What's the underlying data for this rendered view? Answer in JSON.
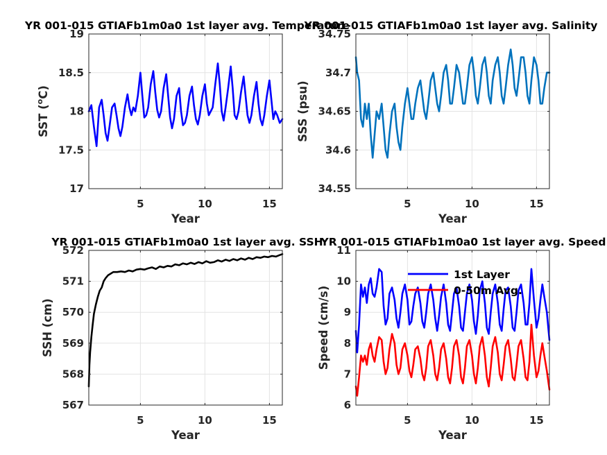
{
  "chart_data": [
    {
      "type": "line",
      "title": "YR 001-015 GTIAFb1m0a0 1st layer avg. Temperature",
      "xlabel": "Year",
      "ylabel": "SST (°C)",
      "ylabel_parts": [
        "SST (",
        "o",
        "C)"
      ],
      "xlim": [
        1,
        16
      ],
      "ylim": [
        17,
        19
      ],
      "xticks": [
        5,
        10,
        15
      ],
      "xticklabels": [
        "5",
        "10",
        "15"
      ],
      "yticks": [
        17,
        17.5,
        18,
        18.5,
        19
      ],
      "yticklabels": [
        "17",
        "17.5",
        "18",
        "18.5",
        "19"
      ],
      "grid": true,
      "series": [
        {
          "color": "#0000ff",
          "x": [
            1.0,
            1.2,
            1.4,
            1.6,
            1.8,
            2.0,
            2.15,
            2.3,
            2.45,
            2.6,
            2.8,
            3.0,
            3.15,
            3.3,
            3.45,
            3.6,
            3.8,
            4.0,
            4.15,
            4.3,
            4.45,
            4.6,
            4.8,
            5.0,
            5.15,
            5.3,
            5.45,
            5.6,
            5.8,
            6.0,
            6.15,
            6.3,
            6.45,
            6.6,
            6.8,
            7.0,
            7.15,
            7.3,
            7.45,
            7.6,
            7.8,
            8.0,
            8.15,
            8.3,
            8.45,
            8.6,
            8.8,
            9.0,
            9.15,
            9.3,
            9.45,
            9.6,
            9.8,
            10.0,
            10.15,
            10.3,
            10.45,
            10.6,
            10.8,
            11.0,
            11.15,
            11.3,
            11.45,
            11.6,
            11.8,
            12.0,
            12.15,
            12.3,
            12.45,
            12.6,
            12.8,
            13.0,
            13.15,
            13.3,
            13.45,
            13.6,
            13.8,
            14.0,
            14.15,
            14.3,
            14.45,
            14.6,
            14.8,
            15.0,
            15.15,
            15.3,
            15.45,
            15.6,
            15.8,
            16.0
          ],
          "y": [
            18.0,
            18.08,
            17.8,
            17.55,
            18.05,
            18.15,
            17.95,
            17.72,
            17.62,
            17.8,
            18.05,
            18.1,
            17.95,
            17.78,
            17.68,
            17.8,
            18.05,
            18.22,
            18.05,
            17.95,
            18.05,
            18.0,
            18.2,
            18.5,
            18.2,
            17.92,
            17.95,
            18.05,
            18.35,
            18.52,
            18.25,
            18.02,
            17.92,
            18.0,
            18.3,
            18.48,
            18.2,
            17.92,
            17.78,
            17.9,
            18.2,
            18.3,
            18.0,
            17.82,
            17.85,
            17.95,
            18.2,
            18.32,
            18.08,
            17.9,
            17.83,
            17.95,
            18.2,
            18.35,
            18.1,
            17.95,
            18.0,
            18.05,
            18.35,
            18.62,
            18.35,
            18.0,
            17.88,
            18.05,
            18.3,
            18.58,
            18.3,
            17.95,
            17.9,
            18.0,
            18.25,
            18.45,
            18.2,
            17.95,
            17.85,
            17.95,
            18.2,
            18.38,
            18.1,
            17.9,
            17.82,
            17.95,
            18.2,
            18.4,
            18.15,
            17.9,
            18.0,
            17.95,
            17.85,
            17.9
          ]
        }
      ]
    },
    {
      "type": "line",
      "title": "YR 001-015 GTIAFb1m0a0 1st layer avg. Salinity",
      "xlabel": "Year",
      "ylabel": "SSS (psu)",
      "xlim": [
        1,
        16
      ],
      "ylim": [
        34.55,
        34.75
      ],
      "xticks": [
        5,
        10,
        15
      ],
      "xticklabels": [
        "5",
        "10",
        "15"
      ],
      "yticks": [
        34.55,
        34.6,
        34.65,
        34.7,
        34.75
      ],
      "yticklabels": [
        "34.55",
        "34.6",
        "34.65",
        "34.7",
        "34.75"
      ],
      "grid": true,
      "series": [
        {
          "color": "#0072bd",
          "x": [
            1.0,
            1.1,
            1.25,
            1.4,
            1.55,
            1.7,
            1.85,
            2.0,
            2.15,
            2.3,
            2.45,
            2.6,
            2.8,
            3.0,
            3.15,
            3.3,
            3.45,
            3.6,
            3.8,
            4.0,
            4.15,
            4.3,
            4.45,
            4.6,
            4.8,
            5.0,
            5.15,
            5.3,
            5.45,
            5.6,
            5.8,
            6.0,
            6.15,
            6.3,
            6.45,
            6.6,
            6.8,
            7.0,
            7.15,
            7.3,
            7.45,
            7.6,
            7.8,
            8.0,
            8.15,
            8.3,
            8.45,
            8.6,
            8.8,
            9.0,
            9.15,
            9.3,
            9.45,
            9.6,
            9.8,
            10.0,
            10.15,
            10.3,
            10.45,
            10.6,
            10.8,
            11.0,
            11.15,
            11.3,
            11.45,
            11.6,
            11.8,
            12.0,
            12.15,
            12.3,
            12.45,
            12.6,
            12.8,
            13.0,
            13.15,
            13.3,
            13.45,
            13.6,
            13.8,
            14.0,
            14.15,
            14.3,
            14.45,
            14.6,
            14.8,
            15.0,
            15.15,
            15.3,
            15.45,
            15.6,
            15.8,
            16.0
          ],
          "y": [
            34.72,
            34.7,
            34.69,
            34.64,
            34.63,
            34.66,
            34.64,
            34.66,
            34.62,
            34.59,
            34.62,
            34.65,
            34.64,
            34.66,
            34.63,
            34.6,
            34.59,
            34.62,
            34.65,
            34.66,
            34.63,
            34.61,
            34.6,
            34.63,
            34.66,
            34.68,
            34.66,
            34.64,
            34.64,
            34.66,
            34.68,
            34.69,
            34.67,
            34.65,
            34.64,
            34.66,
            34.69,
            34.7,
            34.68,
            34.66,
            34.65,
            34.67,
            34.7,
            34.71,
            34.69,
            34.66,
            34.66,
            34.68,
            34.71,
            34.7,
            34.68,
            34.66,
            34.66,
            34.68,
            34.71,
            34.72,
            34.7,
            34.67,
            34.66,
            34.68,
            34.71,
            34.72,
            34.7,
            34.67,
            34.66,
            34.69,
            34.71,
            34.72,
            34.7,
            34.67,
            34.66,
            34.68,
            34.71,
            34.73,
            34.71,
            34.68,
            34.67,
            34.69,
            34.72,
            34.72,
            34.7,
            34.67,
            34.66,
            34.69,
            34.72,
            34.71,
            34.69,
            34.66,
            34.66,
            34.68,
            34.7,
            34.7
          ]
        }
      ]
    },
    {
      "type": "line",
      "title": "YR 001-015 GTIAFb1m0a0 1st layer avg. SSH",
      "xlabel": "Year",
      "ylabel": "SSH (cm)",
      "xlim": [
        1,
        16
      ],
      "ylim": [
        567,
        572
      ],
      "xticks": [
        5,
        10,
        15
      ],
      "xticklabels": [
        "5",
        "10",
        "15"
      ],
      "yticks": [
        567,
        568,
        569,
        570,
        571,
        572
      ],
      "yticklabels": [
        "567",
        "568",
        "569",
        "570",
        "571",
        "572"
      ],
      "grid": true,
      "series": [
        {
          "color": "#000000",
          "x": [
            1.0,
            1.05,
            1.1,
            1.2,
            1.3,
            1.4,
            1.55,
            1.7,
            1.85,
            2.0,
            2.15,
            2.3,
            2.5,
            2.7,
            2.9,
            3.2,
            3.5,
            3.8,
            4.1,
            4.4,
            4.7,
            5.0,
            5.3,
            5.6,
            5.9,
            6.2,
            6.5,
            6.8,
            7.1,
            7.4,
            7.7,
            8.0,
            8.3,
            8.6,
            8.9,
            9.2,
            9.5,
            9.8,
            10.1,
            10.4,
            10.7,
            11.0,
            11.3,
            11.6,
            11.9,
            12.2,
            12.5,
            12.8,
            13.1,
            13.4,
            13.7,
            14.0,
            14.3,
            14.6,
            14.9,
            15.2,
            15.5,
            15.8,
            16.0
          ],
          "y": [
            567.6,
            568.3,
            568.7,
            569.2,
            569.6,
            569.95,
            570.25,
            570.5,
            570.7,
            570.8,
            571.0,
            571.1,
            571.2,
            571.25,
            571.3,
            571.3,
            571.32,
            571.3,
            571.35,
            571.32,
            571.38,
            571.4,
            571.38,
            571.42,
            571.45,
            571.4,
            571.48,
            571.45,
            571.5,
            571.48,
            571.55,
            571.52,
            571.58,
            571.55,
            571.6,
            571.56,
            571.62,
            571.58,
            571.65,
            571.6,
            571.62,
            571.68,
            571.64,
            571.7,
            571.66,
            571.72,
            571.68,
            571.74,
            571.7,
            571.76,
            571.72,
            571.78,
            571.76,
            571.8,
            571.78,
            571.82,
            571.8,
            571.85,
            571.88
          ]
        }
      ]
    },
    {
      "type": "line",
      "title": "YR 001-015 GTIAFb1m0a0 1st layer avg. Speed",
      "xlabel": "Year",
      "ylabel": "Speed (cm/s)",
      "xlim": [
        1,
        16
      ],
      "ylim": [
        6,
        11
      ],
      "xticks": [
        5,
        10,
        15
      ],
      "xticklabels": [
        "5",
        "10",
        "15"
      ],
      "yticks": [
        6,
        7,
        8,
        9,
        10,
        11
      ],
      "yticklabels": [
        "6",
        "7",
        "8",
        "9",
        "10",
        "11"
      ],
      "grid": true,
      "legend": "top-center",
      "series": [
        {
          "name": "1st Layer",
          "color": "#0000ff",
          "x": [
            1.0,
            1.1,
            1.25,
            1.4,
            1.55,
            1.7,
            1.85,
            2.0,
            2.15,
            2.3,
            2.45,
            2.6,
            2.8,
            3.0,
            3.15,
            3.3,
            3.45,
            3.6,
            3.8,
            4.0,
            4.15,
            4.3,
            4.45,
            4.6,
            4.8,
            5.0,
            5.15,
            5.3,
            5.45,
            5.6,
            5.8,
            6.0,
            6.15,
            6.3,
            6.45,
            6.6,
            6.8,
            7.0,
            7.15,
            7.3,
            7.45,
            7.6,
            7.8,
            8.0,
            8.15,
            8.3,
            8.45,
            8.6,
            8.8,
            9.0,
            9.15,
            9.3,
            9.45,
            9.6,
            9.8,
            10.0,
            10.15,
            10.3,
            10.45,
            10.6,
            10.8,
            11.0,
            11.15,
            11.3,
            11.45,
            11.6,
            11.8,
            12.0,
            12.15,
            12.3,
            12.45,
            12.6,
            12.8,
            13.0,
            13.15,
            13.3,
            13.45,
            13.6,
            13.8,
            14.0,
            14.15,
            14.3,
            14.45,
            14.6,
            14.8,
            15.0,
            15.15,
            15.3,
            15.45,
            15.6,
            15.8,
            16.0
          ],
          "y": [
            8.4,
            7.7,
            8.6,
            9.9,
            9.5,
            9.8,
            9.3,
            9.9,
            10.1,
            9.6,
            9.5,
            9.8,
            10.4,
            10.3,
            9.2,
            8.6,
            8.8,
            9.6,
            9.8,
            9.4,
            8.8,
            8.5,
            9.0,
            9.6,
            9.9,
            9.4,
            8.6,
            8.7,
            9.2,
            9.6,
            9.8,
            9.3,
            8.7,
            8.5,
            9.0,
            9.6,
            9.9,
            9.4,
            8.8,
            8.4,
            8.9,
            9.5,
            9.9,
            9.3,
            8.6,
            8.4,
            9.0,
            9.6,
            9.8,
            9.2,
            8.5,
            8.4,
            9.0,
            9.6,
            9.9,
            9.4,
            8.7,
            8.3,
            8.9,
            9.7,
            10.0,
            9.3,
            8.5,
            8.3,
            9.0,
            9.6,
            9.9,
            9.3,
            8.6,
            8.4,
            9.1,
            9.7,
            9.8,
            9.2,
            8.5,
            8.4,
            9.0,
            9.7,
            9.9,
            9.3,
            8.6,
            8.6,
            9.3,
            10.4,
            9.4,
            8.5,
            8.8,
            9.4,
            9.9,
            9.5,
            9.0,
            8.1
          ]
        },
        {
          "name": "0-50m Avg.",
          "color": "#ff0000",
          "x": [
            1.0,
            1.1,
            1.25,
            1.4,
            1.55,
            1.7,
            1.85,
            2.0,
            2.15,
            2.3,
            2.45,
            2.6,
            2.8,
            3.0,
            3.15,
            3.3,
            3.45,
            3.6,
            3.8,
            4.0,
            4.15,
            4.3,
            4.45,
            4.6,
            4.8,
            5.0,
            5.15,
            5.3,
            5.45,
            5.6,
            5.8,
            6.0,
            6.15,
            6.3,
            6.45,
            6.6,
            6.8,
            7.0,
            7.15,
            7.3,
            7.45,
            7.6,
            7.8,
            8.0,
            8.15,
            8.3,
            8.45,
            8.6,
            8.8,
            9.0,
            9.15,
            9.3,
            9.45,
            9.6,
            9.8,
            10.0,
            10.15,
            10.3,
            10.45,
            10.6,
            10.8,
            11.0,
            11.15,
            11.3,
            11.45,
            11.6,
            11.8,
            12.0,
            12.15,
            12.3,
            12.45,
            12.6,
            12.8,
            13.0,
            13.15,
            13.3,
            13.45,
            13.6,
            13.8,
            14.0,
            14.15,
            14.3,
            14.45,
            14.6,
            14.8,
            15.0,
            15.15,
            15.3,
            15.45,
            15.6,
            15.8,
            16.0
          ],
          "y": [
            6.6,
            6.3,
            6.9,
            7.6,
            7.4,
            7.6,
            7.3,
            7.8,
            8.0,
            7.6,
            7.4,
            7.8,
            8.2,
            8.1,
            7.4,
            7.0,
            7.2,
            7.8,
            8.3,
            8.0,
            7.3,
            7.0,
            7.2,
            7.8,
            8.0,
            7.6,
            7.1,
            6.9,
            7.3,
            7.8,
            7.9,
            7.5,
            7.0,
            6.8,
            7.2,
            7.9,
            8.1,
            7.6,
            7.0,
            6.8,
            7.2,
            7.8,
            8.0,
            7.5,
            6.9,
            6.7,
            7.2,
            7.9,
            8.1,
            7.6,
            6.9,
            6.7,
            7.2,
            7.9,
            8.1,
            7.6,
            7.0,
            6.7,
            7.2,
            7.9,
            8.2,
            7.6,
            6.9,
            6.6,
            7.2,
            7.9,
            8.2,
            7.7,
            7.0,
            6.8,
            7.3,
            7.9,
            8.1,
            7.5,
            6.9,
            6.8,
            7.3,
            7.9,
            8.1,
            7.5,
            6.9,
            6.8,
            7.4,
            8.6,
            7.6,
            6.9,
            7.1,
            7.6,
            8.0,
            7.6,
            7.1,
            6.5
          ]
        }
      ]
    }
  ]
}
